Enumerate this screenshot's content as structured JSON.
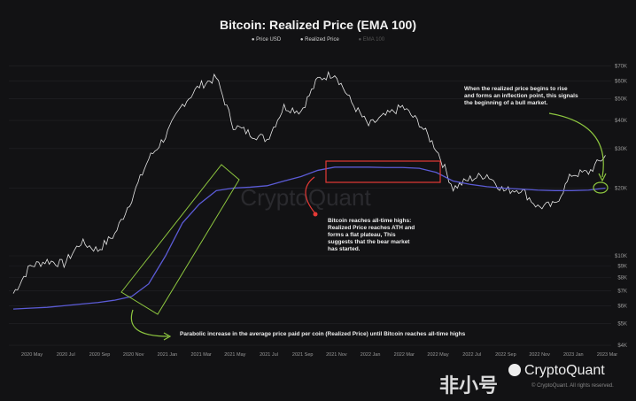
{
  "chart_data": {
    "type": "line",
    "title": "Bitcoin: Realized Price (EMA 100)",
    "legend": [
      "Price USD",
      "Realized Price",
      "EMA 100"
    ],
    "legend_placement": "top-center",
    "yscale": "log",
    "ylim": [
      4000,
      80000
    ],
    "y_ticks": [
      "$4K",
      "$5K",
      "$6K",
      "$7K",
      "$8K",
      "$9K",
      "$10K",
      "$20K",
      "$30K",
      "$40K",
      "$50K",
      "$60K",
      "$70K"
    ],
    "y_tick_values": [
      4000,
      5000,
      6000,
      7000,
      8000,
      9000,
      10000,
      20000,
      30000,
      40000,
      50000,
      60000,
      70000
    ],
    "x_ticks": [
      "2020 May",
      "2020 Jul",
      "2020 Sep",
      "2020 Nov",
      "2021 Jan",
      "2021 Mar",
      "2021 May",
      "2021 Jul",
      "2021 Sep",
      "2021 Nov",
      "2022 Jan",
      "2022 Mar",
      "2022 May",
      "2022 Jul",
      "2022 Sep",
      "2022 Nov",
      "2023 Jan",
      "2023 Mar"
    ],
    "x_months": [
      "2020-04",
      "2020-05",
      "2020-06",
      "2020-07",
      "2020-08",
      "2020-09",
      "2020-10",
      "2020-11",
      "2020-12",
      "2021-01",
      "2021-02",
      "2021-03",
      "2021-04",
      "2021-05",
      "2021-06",
      "2021-07",
      "2021-08",
      "2021-09",
      "2021-10",
      "2021-11",
      "2021-12",
      "2022-01",
      "2022-02",
      "2022-03",
      "2022-04",
      "2022-05",
      "2022-06",
      "2022-07",
      "2022-08",
      "2022-09",
      "2022-10",
      "2022-11",
      "2022-12",
      "2023-01",
      "2023-02",
      "2023-03"
    ],
    "series": [
      {
        "name": "Price USD",
        "color": "#e6e6e6",
        "values": [
          6800,
          9000,
          9500,
          9200,
          11500,
          10600,
          12500,
          18000,
          27000,
          34000,
          47000,
          57000,
          62000,
          38000,
          35000,
          33000,
          46000,
          44000,
          61000,
          65000,
          48000,
          38000,
          42000,
          46000,
          39000,
          30000,
          20000,
          22000,
          23000,
          19500,
          19800,
          16500,
          16800,
          23000,
          23500,
          28000
        ]
      },
      {
        "name": "Realized Price",
        "color": "#5b5bd6",
        "values": [
          5800,
          5850,
          5900,
          6000,
          6100,
          6200,
          6350,
          6600,
          7500,
          10000,
          14000,
          17000,
          19500,
          20000,
          20200,
          20500,
          21500,
          22500,
          24000,
          24800,
          24800,
          24800,
          24700,
          24700,
          24500,
          23500,
          21500,
          20800,
          20300,
          20000,
          19800,
          19600,
          19500,
          19500,
          19600,
          20000
        ]
      }
    ],
    "annotations": [
      {
        "text": "When the realized price begins to rise and forms an inflection point,  this signals the beginning of a bull market.",
        "color": "#8dc63f"
      },
      {
        "text": "Bitcoin reaches all-time highs:  Realized Price reaches ATH and forms a flat plateau,  This suggests that the bear market has started.",
        "color": "#e53935"
      },
      {
        "text": "Parabolic increase in the average price paid per coin (Realized Price) until Bitcoin reaches all-time highs",
        "color": "#8dc63f"
      }
    ]
  },
  "branding": {
    "logo": "CryptoQuant",
    "watermark": "CryptoQuant",
    "copyright": "© CryptoQuant. All rights reserved.",
    "overlay_watermark": "非小号"
  }
}
